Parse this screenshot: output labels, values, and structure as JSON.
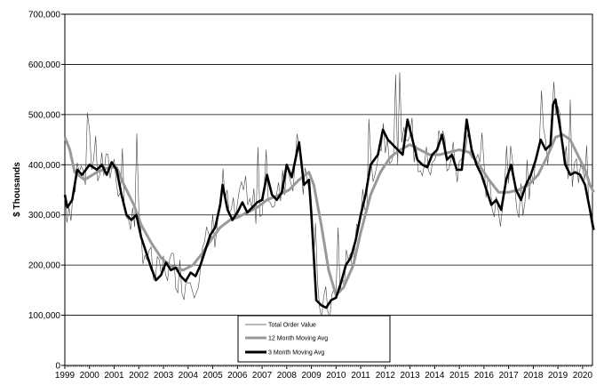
{
  "chart_data": {
    "type": "line",
    "title": "",
    "xlabel": "",
    "ylabel": "$ Thousands",
    "ylim": [
      0,
      700000
    ],
    "y_ticks": [
      "0",
      "100,000",
      "200,000",
      "300,000",
      "400,000",
      "500,000",
      "600,000",
      "700,000"
    ],
    "x_range": [
      1999,
      2020.4
    ],
    "x_ticks": [
      "1999",
      "2000",
      "2001",
      "2002",
      "2003",
      "2004",
      "2005",
      "2006",
      "2007",
      "2008",
      "2009",
      "2010",
      "2011",
      "2012",
      "2013",
      "2014",
      "2015",
      "2016",
      "2017",
      "2018",
      "2019",
      "2020"
    ],
    "grid": "horizontal",
    "legend_position": "bottom-center",
    "colors": {
      "total": "#444444",
      "ma12": "#999999",
      "ma3": "#000000",
      "grid": "#000000"
    },
    "anchor_series": {
      "ma3": [
        [
          1999.0,
          340000
        ],
        [
          1999.1,
          315000
        ],
        [
          1999.3,
          330000
        ],
        [
          1999.5,
          390000
        ],
        [
          1999.7,
          380000
        ],
        [
          2000.0,
          400000
        ],
        [
          2000.3,
          390000
        ],
        [
          2000.5,
          400000
        ],
        [
          2000.7,
          380000
        ],
        [
          2000.9,
          405000
        ],
        [
          2001.1,
          390000
        ],
        [
          2001.3,
          340000
        ],
        [
          2001.5,
          300000
        ],
        [
          2001.7,
          290000
        ],
        [
          2001.9,
          300000
        ],
        [
          2002.1,
          255000
        ],
        [
          2002.3,
          225000
        ],
        [
          2002.5,
          195000
        ],
        [
          2002.7,
          170000
        ],
        [
          2002.9,
          180000
        ],
        [
          2003.1,
          205000
        ],
        [
          2003.3,
          190000
        ],
        [
          2003.5,
          195000
        ],
        [
          2003.7,
          178000
        ],
        [
          2003.9,
          168000
        ],
        [
          2004.1,
          185000
        ],
        [
          2004.3,
          178000
        ],
        [
          2004.5,
          200000
        ],
        [
          2004.7,
          230000
        ],
        [
          2004.9,
          260000
        ],
        [
          2005.1,
          275000
        ],
        [
          2005.3,
          320000
        ],
        [
          2005.4,
          360000
        ],
        [
          2005.6,
          310000
        ],
        [
          2005.8,
          290000
        ],
        [
          2006.0,
          305000
        ],
        [
          2006.2,
          325000
        ],
        [
          2006.4,
          305000
        ],
        [
          2006.6,
          315000
        ],
        [
          2006.8,
          325000
        ],
        [
          2007.0,
          330000
        ],
        [
          2007.2,
          380000
        ],
        [
          2007.4,
          340000
        ],
        [
          2007.6,
          330000
        ],
        [
          2007.8,
          345000
        ],
        [
          2008.0,
          400000
        ],
        [
          2008.2,
          375000
        ],
        [
          2008.5,
          445000
        ],
        [
          2008.7,
          360000
        ],
        [
          2008.9,
          370000
        ],
        [
          2009.0,
          300000
        ],
        [
          2009.2,
          130000
        ],
        [
          2009.4,
          120000
        ],
        [
          2009.6,
          115000
        ],
        [
          2009.8,
          130000
        ],
        [
          2010.0,
          135000
        ],
        [
          2010.2,
          165000
        ],
        [
          2010.4,
          200000
        ],
        [
          2010.6,
          215000
        ],
        [
          2010.8,
          250000
        ],
        [
          2011.0,
          300000
        ],
        [
          2011.2,
          340000
        ],
        [
          2011.4,
          400000
        ],
        [
          2011.7,
          420000
        ],
        [
          2011.9,
          470000
        ],
        [
          2012.1,
          450000
        ],
        [
          2012.3,
          440000
        ],
        [
          2012.5,
          430000
        ],
        [
          2012.7,
          420000
        ],
        [
          2012.9,
          490000
        ],
        [
          2013.1,
          450000
        ],
        [
          2013.3,
          410000
        ],
        [
          2013.5,
          400000
        ],
        [
          2013.7,
          395000
        ],
        [
          2013.9,
          420000
        ],
        [
          2014.1,
          430000
        ],
        [
          2014.3,
          460000
        ],
        [
          2014.5,
          410000
        ],
        [
          2014.7,
          420000
        ],
        [
          2014.9,
          390000
        ],
        [
          2015.1,
          390000
        ],
        [
          2015.3,
          490000
        ],
        [
          2015.5,
          430000
        ],
        [
          2015.7,
          400000
        ],
        [
          2015.9,
          380000
        ],
        [
          2016.1,
          350000
        ],
        [
          2016.3,
          320000
        ],
        [
          2016.5,
          330000
        ],
        [
          2016.7,
          310000
        ],
        [
          2016.9,
          370000
        ],
        [
          2017.1,
          400000
        ],
        [
          2017.3,
          350000
        ],
        [
          2017.5,
          330000
        ],
        [
          2017.7,
          360000
        ],
        [
          2017.9,
          380000
        ],
        [
          2018.1,
          410000
        ],
        [
          2018.3,
          450000
        ],
        [
          2018.5,
          430000
        ],
        [
          2018.7,
          440000
        ],
        [
          2018.8,
          520000
        ],
        [
          2018.9,
          530000
        ],
        [
          2019.1,
          470000
        ],
        [
          2019.3,
          400000
        ],
        [
          2019.5,
          380000
        ],
        [
          2019.7,
          385000
        ],
        [
          2019.9,
          380000
        ],
        [
          2020.1,
          360000
        ],
        [
          2020.3,
          310000
        ],
        [
          2020.45,
          270000
        ]
      ],
      "ma12": [
        [
          1999.0,
          455000
        ],
        [
          1999.2,
          430000
        ],
        [
          1999.4,
          385000
        ],
        [
          1999.8,
          370000
        ],
        [
          2000.3,
          385000
        ],
        [
          2000.8,
          395000
        ],
        [
          2001.1,
          395000
        ],
        [
          2001.4,
          360000
        ],
        [
          2001.8,
          320000
        ],
        [
          2002.1,
          280000
        ],
        [
          2002.5,
          245000
        ],
        [
          2002.9,
          215000
        ],
        [
          2003.3,
          198000
        ],
        [
          2003.8,
          190000
        ],
        [
          2004.2,
          200000
        ],
        [
          2004.6,
          225000
        ],
        [
          2005.0,
          255000
        ],
        [
          2005.3,
          275000
        ],
        [
          2005.7,
          290000
        ],
        [
          2006.0,
          295000
        ],
        [
          2006.4,
          305000
        ],
        [
          2006.8,
          315000
        ],
        [
          2007.2,
          330000
        ],
        [
          2007.7,
          340000
        ],
        [
          2008.1,
          350000
        ],
        [
          2008.5,
          370000
        ],
        [
          2008.9,
          385000
        ],
        [
          2009.1,
          360000
        ],
        [
          2009.4,
          280000
        ],
        [
          2009.7,
          190000
        ],
        [
          2010.0,
          140000
        ],
        [
          2010.3,
          155000
        ],
        [
          2010.7,
          200000
        ],
        [
          2011.0,
          265000
        ],
        [
          2011.4,
          340000
        ],
        [
          2011.8,
          385000
        ],
        [
          2012.2,
          415000
        ],
        [
          2012.6,
          430000
        ],
        [
          2013.0,
          440000
        ],
        [
          2013.4,
          430000
        ],
        [
          2013.8,
          420000
        ],
        [
          2014.2,
          420000
        ],
        [
          2014.6,
          425000
        ],
        [
          2015.0,
          430000
        ],
        [
          2015.4,
          425000
        ],
        [
          2015.8,
          400000
        ],
        [
          2016.2,
          370000
        ],
        [
          2016.6,
          345000
        ],
        [
          2017.0,
          345000
        ],
        [
          2017.4,
          350000
        ],
        [
          2017.8,
          360000
        ],
        [
          2018.2,
          380000
        ],
        [
          2018.6,
          420000
        ],
        [
          2018.9,
          455000
        ],
        [
          2019.2,
          460000
        ],
        [
          2019.5,
          450000
        ],
        [
          2019.8,
          420000
        ],
        [
          2020.1,
          390000
        ],
        [
          2020.3,
          360000
        ],
        [
          2020.45,
          345000
        ]
      ]
    }
  },
  "legend": {
    "total_label": "Total Order Value",
    "ma12_label": "12 Month Moving Avg",
    "ma3_label": "3 Month Moving Avg"
  }
}
